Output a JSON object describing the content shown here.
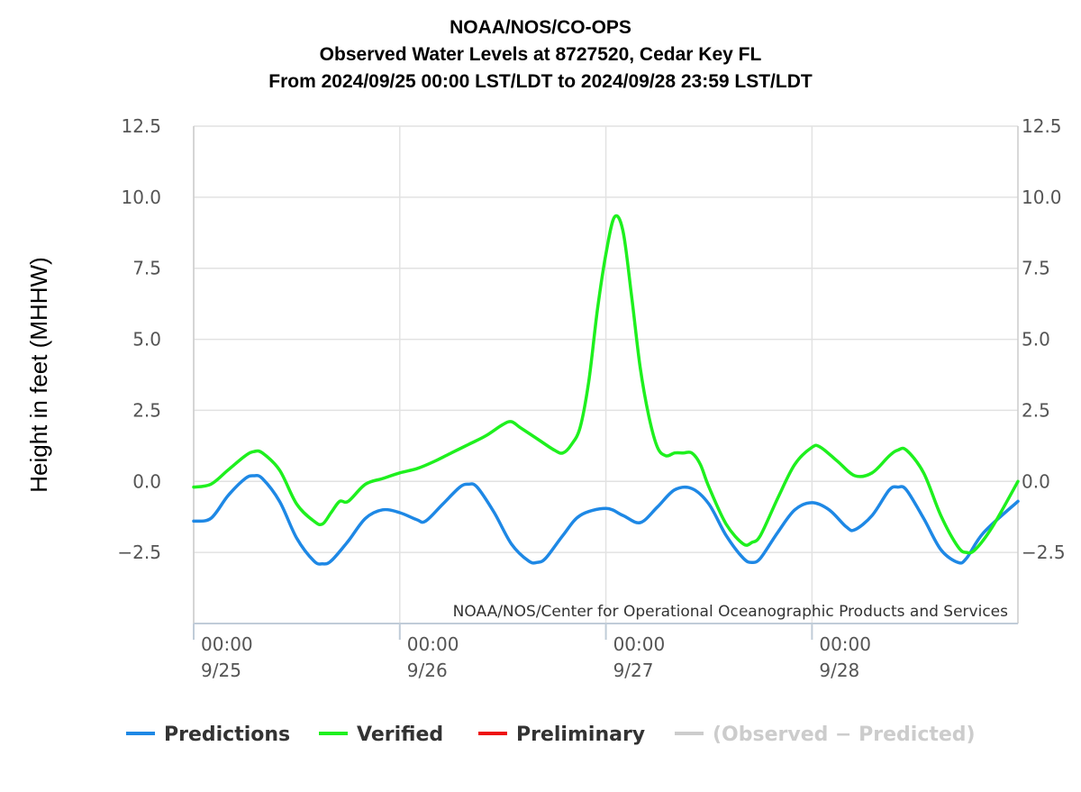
{
  "chart_data": {
    "type": "line",
    "title": [
      "NOAA/NOS/CO-OPS",
      "Observed Water Levels at 8727520, Cedar Key FL",
      "From 2024/09/25 00:00 LST/LDT to 2024/09/28 23:59 LST/LDT"
    ],
    "ylabel": "Height in feet (MHHW)",
    "xlabel": "",
    "ylim": [
      -5,
      12.5
    ],
    "xlim": [
      "2024-09-25 00:00",
      "2024-09-28 23:59"
    ],
    "y_ticks": [
      "12.5",
      "10.0",
      "7.5",
      "5.0",
      "2.5",
      "0.0",
      "−2.5"
    ],
    "y_tick_values": [
      12.5,
      10,
      7.5,
      5,
      2.5,
      0,
      -2.5
    ],
    "x_ticks": [
      {
        "time": "00:00",
        "date": "9/25",
        "value": "2024-09-25 00:00"
      },
      {
        "time": "00:00",
        "date": "9/26",
        "value": "2024-09-26 00:00"
      },
      {
        "time": "00:00",
        "date": "9/27",
        "value": "2024-09-27 00:00"
      },
      {
        "time": "00:00",
        "date": "9/28",
        "value": "2024-09-28 00:00"
      }
    ],
    "grid": true,
    "legend_position": "bottom",
    "credit": "NOAA/NOS/Center for Operational Oceanographic Products and Services",
    "series": [
      {
        "name": "Predictions",
        "color": "#1e88e5",
        "points": [
          [
            "2024-09-25 00:00",
            -1.4
          ],
          [
            "2024-09-25 02:00",
            -1.3
          ],
          [
            "2024-09-25 04:00",
            -0.5
          ],
          [
            "2024-09-25 06:00",
            0.1
          ],
          [
            "2024-09-25 07:00",
            0.2
          ],
          [
            "2024-09-25 08:00",
            0.1
          ],
          [
            "2024-09-25 10:00",
            -0.7
          ],
          [
            "2024-09-25 12:00",
            -2.0
          ],
          [
            "2024-09-25 14:00",
            -2.8
          ],
          [
            "2024-09-25 15:00",
            -2.9
          ],
          [
            "2024-09-25 16:00",
            -2.8
          ],
          [
            "2024-09-25 18:00",
            -2.1
          ],
          [
            "2024-09-25 20:00",
            -1.3
          ],
          [
            "2024-09-25 22:00",
            -1.0
          ],
          [
            "2024-09-26 00:00",
            -1.1
          ],
          [
            "2024-09-26 02:00",
            -1.35
          ],
          [
            "2024-09-26 03:00",
            -1.4
          ],
          [
            "2024-09-26 05:00",
            -0.8
          ],
          [
            "2024-09-26 07:00",
            -0.2
          ],
          [
            "2024-09-26 08:00",
            -0.1
          ],
          [
            "2024-09-26 09:00",
            -0.2
          ],
          [
            "2024-09-26 11:00",
            -1.1
          ],
          [
            "2024-09-26 13:00",
            -2.2
          ],
          [
            "2024-09-26 15:00",
            -2.8
          ],
          [
            "2024-09-26 16:00",
            -2.85
          ],
          [
            "2024-09-26 17:00",
            -2.7
          ],
          [
            "2024-09-26 19:00",
            -1.9
          ],
          [
            "2024-09-26 21:00",
            -1.2
          ],
          [
            "2024-09-27 00:00",
            -0.95
          ],
          [
            "2024-09-27 02:00",
            -1.2
          ],
          [
            "2024-09-27 04:00",
            -1.45
          ],
          [
            "2024-09-27 06:00",
            -0.9
          ],
          [
            "2024-09-27 08:00",
            -0.3
          ],
          [
            "2024-09-27 10:00",
            -0.25
          ],
          [
            "2024-09-27 12:00",
            -0.8
          ],
          [
            "2024-09-27 14:00",
            -1.9
          ],
          [
            "2024-09-27 16:00",
            -2.7
          ],
          [
            "2024-09-27 17:00",
            -2.85
          ],
          [
            "2024-09-27 18:00",
            -2.7
          ],
          [
            "2024-09-27 20:00",
            -1.8
          ],
          [
            "2024-09-27 22:00",
            -1.0
          ],
          [
            "2024-09-28 00:00",
            -0.75
          ],
          [
            "2024-09-28 02:00",
            -1.0
          ],
          [
            "2024-09-28 04:00",
            -1.6
          ],
          [
            "2024-09-28 05:00",
            -1.7
          ],
          [
            "2024-09-28 07:00",
            -1.2
          ],
          [
            "2024-09-28 09:00",
            -0.3
          ],
          [
            "2024-09-28 10:00",
            -0.2
          ],
          [
            "2024-09-28 11:00",
            -0.3
          ],
          [
            "2024-09-28 13:00",
            -1.3
          ],
          [
            "2024-09-28 15:00",
            -2.4
          ],
          [
            "2024-09-28 17:00",
            -2.85
          ],
          [
            "2024-09-28 18:00",
            -2.7
          ],
          [
            "2024-09-28 20:00",
            -1.8
          ],
          [
            "2024-09-28 23:59",
            -0.7
          ]
        ]
      },
      {
        "name": "Verified",
        "color": "#1ef01e",
        "points": [
          [
            "2024-09-25 00:00",
            -0.2
          ],
          [
            "2024-09-25 02:00",
            -0.1
          ],
          [
            "2024-09-25 04:00",
            0.4
          ],
          [
            "2024-09-25 06:00",
            0.9
          ],
          [
            "2024-09-25 07:00",
            1.05
          ],
          [
            "2024-09-25 08:00",
            1.0
          ],
          [
            "2024-09-25 10:00",
            0.4
          ],
          [
            "2024-09-25 12:00",
            -0.8
          ],
          [
            "2024-09-25 14:00",
            -1.4
          ],
          [
            "2024-09-25 15:00",
            -1.5
          ],
          [
            "2024-09-25 16:00",
            -1.1
          ],
          [
            "2024-09-25 17:00",
            -0.7
          ],
          [
            "2024-09-25 18:00",
            -0.7
          ],
          [
            "2024-09-25 20:00",
            -0.1
          ],
          [
            "2024-09-25 22:00",
            0.1
          ],
          [
            "2024-09-26 00:00",
            0.3
          ],
          [
            "2024-09-26 02:00",
            0.45
          ],
          [
            "2024-09-26 04:00",
            0.7
          ],
          [
            "2024-09-26 06:00",
            1.0
          ],
          [
            "2024-09-26 08:00",
            1.3
          ],
          [
            "2024-09-26 10:00",
            1.6
          ],
          [
            "2024-09-26 12:00",
            2.0
          ],
          [
            "2024-09-26 13:00",
            2.1
          ],
          [
            "2024-09-26 14:00",
            1.9
          ],
          [
            "2024-09-26 16:00",
            1.5
          ],
          [
            "2024-09-26 18:00",
            1.1
          ],
          [
            "2024-09-26 19:00",
            1.0
          ],
          [
            "2024-09-26 20:00",
            1.3
          ],
          [
            "2024-09-26 21:00",
            1.9
          ],
          [
            "2024-09-26 22:00",
            3.5
          ],
          [
            "2024-09-26 23:00",
            6.0
          ],
          [
            "2024-09-27 00:00",
            8.0
          ],
          [
            "2024-09-27 01:00",
            9.3
          ],
          [
            "2024-09-27 02:00",
            8.8
          ],
          [
            "2024-09-27 03:00",
            6.5
          ],
          [
            "2024-09-27 04:00",
            4.0
          ],
          [
            "2024-09-27 05:00",
            2.3
          ],
          [
            "2024-09-27 06:00",
            1.2
          ],
          [
            "2024-09-27 07:00",
            0.9
          ],
          [
            "2024-09-27 08:00",
            1.0
          ],
          [
            "2024-09-27 09:00",
            1.0
          ],
          [
            "2024-09-27 10:00",
            1.0
          ],
          [
            "2024-09-27 11:00",
            0.6
          ],
          [
            "2024-09-27 12:00",
            -0.2
          ],
          [
            "2024-09-27 14:00",
            -1.5
          ],
          [
            "2024-09-27 16:00",
            -2.2
          ],
          [
            "2024-09-27 17:00",
            -2.15
          ],
          [
            "2024-09-27 18:00",
            -1.9
          ],
          [
            "2024-09-27 20:00",
            -0.6
          ],
          [
            "2024-09-27 22:00",
            0.6
          ],
          [
            "2024-09-28 00:00",
            1.2
          ],
          [
            "2024-09-28 01:00",
            1.2
          ],
          [
            "2024-09-28 03:00",
            0.7
          ],
          [
            "2024-09-28 05:00",
            0.2
          ],
          [
            "2024-09-28 07:00",
            0.3
          ],
          [
            "2024-09-28 09:00",
            0.9
          ],
          [
            "2024-09-28 10:00",
            1.1
          ],
          [
            "2024-09-28 11:00",
            1.1
          ],
          [
            "2024-09-28 13:00",
            0.3
          ],
          [
            "2024-09-28 15:00",
            -1.2
          ],
          [
            "2024-09-28 17:00",
            -2.3
          ],
          [
            "2024-09-28 18:00",
            -2.5
          ],
          [
            "2024-09-28 19:00",
            -2.4
          ],
          [
            "2024-09-28 21:00",
            -1.6
          ],
          [
            "2024-09-28 23:59",
            0.0
          ]
        ]
      },
      {
        "name": "Preliminary",
        "color": "#ee1111",
        "points": []
      },
      {
        "name": "(Observed − Predicted)",
        "color": "#cccccc",
        "points": [],
        "hidden": true
      }
    ]
  }
}
